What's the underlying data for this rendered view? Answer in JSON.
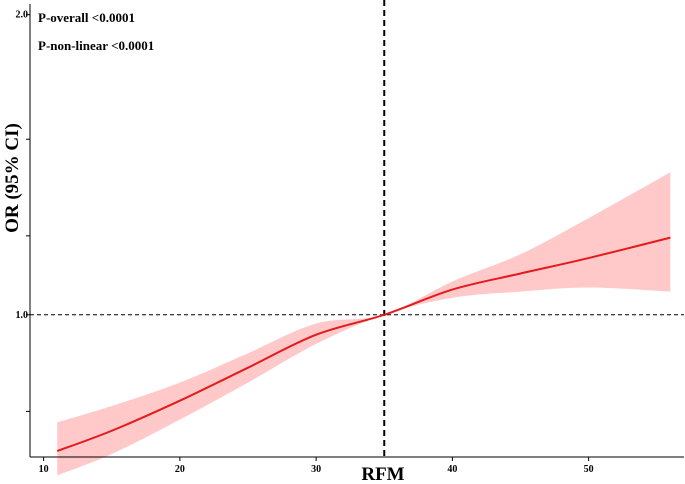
{
  "chart_data": {
    "type": "line",
    "title": "",
    "xlabel": "RFM",
    "ylabel": "OR (95% CI)",
    "xlim": [
      9,
      57
    ],
    "ylim": [
      0.72,
      2.05
    ],
    "x_ticks": [
      10,
      20,
      30,
      40,
      50
    ],
    "x_tick_labels": [
      "10",
      "20",
      "30",
      "40",
      "50"
    ],
    "y_ticks": [
      0.8,
      1.0,
      1.2,
      1.5,
      2.0
    ],
    "y_tick_labels": [
      "",
      "1.0",
      "",
      "",
      "2.0"
    ],
    "y_scale": "log",
    "grid": false,
    "legend": "none",
    "annotations": [
      "P-overall <0.0001",
      "P-non-linear <0.0001"
    ],
    "reference_lines": {
      "x": 35,
      "y": 1.0
    },
    "series": [
      {
        "type": "line",
        "color": "#e41a1c",
        "x": [
          11,
          15,
          20,
          25,
          30,
          35,
          40,
          45,
          50,
          56
        ],
        "y": [
          0.73,
          0.765,
          0.82,
          0.885,
          0.955,
          1.0,
          1.06,
          1.1,
          1.14,
          1.195
        ],
        "ci_color": "#ffc9c9",
        "lower": [
          0.69,
          0.725,
          0.785,
          0.855,
          0.935,
          1.0,
          1.04,
          1.055,
          1.065,
          1.055
        ],
        "upper": [
          0.78,
          0.81,
          0.855,
          0.915,
          0.98,
          1.0,
          1.08,
          1.15,
          1.25,
          1.39
        ]
      }
    ]
  }
}
